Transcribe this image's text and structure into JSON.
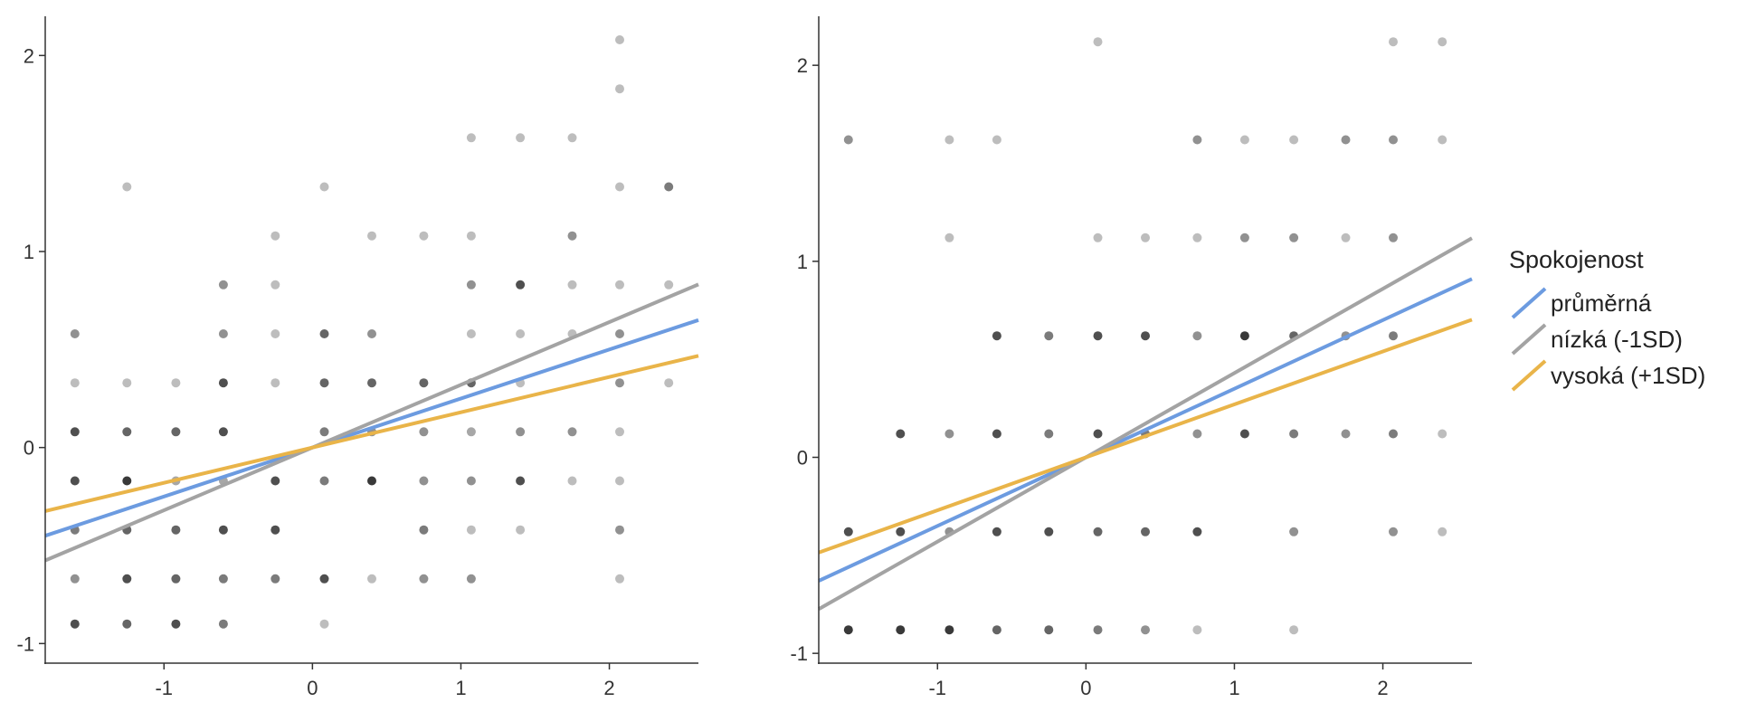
{
  "chart_data": {
    "type": "scatter",
    "legend": {
      "title": "Spokojenost",
      "position": "right",
      "items": [
        {
          "label": "průměrná",
          "color": "#6C9BE0"
        },
        {
          "label": "nízká (-1SD)",
          "color": "#A3A3A3"
        },
        {
          "label": "vysoká (+1SD)",
          "color": "#E9B449"
        }
      ]
    },
    "panels": [
      {
        "xlim": [
          -1.8,
          2.6
        ],
        "ylim": [
          -1.1,
          2.2
        ],
        "xticks": [
          -1,
          0,
          1,
          2
        ],
        "yticks": [
          -1,
          0,
          1,
          2
        ],
        "grid": false,
        "lines": [
          {
            "series": "průměrná",
            "color": "#6C9BE0",
            "slope": 0.25
          },
          {
            "series": "nízká (-1SD)",
            "color": "#A3A3A3",
            "slope": 0.32
          },
          {
            "series": "vysoká (+1SD)",
            "color": "#E9B449",
            "slope": 0.18
          }
        ],
        "points": [
          [
            -1.6,
            -0.9,
            0.8
          ],
          [
            -1.25,
            -0.9,
            0.7
          ],
          [
            -0.92,
            -0.9,
            0.8
          ],
          [
            -0.6,
            -0.9,
            0.6
          ],
          [
            0.08,
            -0.9,
            0.3
          ],
          [
            -1.6,
            -0.67,
            0.5
          ],
          [
            -1.25,
            -0.67,
            0.8
          ],
          [
            -0.92,
            -0.67,
            0.7
          ],
          [
            -0.6,
            -0.67,
            0.6
          ],
          [
            -0.25,
            -0.67,
            0.6
          ],
          [
            0.08,
            -0.67,
            0.8
          ],
          [
            0.4,
            -0.67,
            0.3
          ],
          [
            0.75,
            -0.67,
            0.5
          ],
          [
            1.07,
            -0.67,
            0.5
          ],
          [
            2.07,
            -0.67,
            0.3
          ],
          [
            -1.6,
            -0.42,
            0.6
          ],
          [
            -1.25,
            -0.42,
            0.7
          ],
          [
            -0.92,
            -0.42,
            0.7
          ],
          [
            -0.6,
            -0.42,
            0.8
          ],
          [
            -0.25,
            -0.42,
            0.8
          ],
          [
            0.75,
            -0.42,
            0.6
          ],
          [
            1.07,
            -0.42,
            0.3
          ],
          [
            1.4,
            -0.42,
            0.3
          ],
          [
            2.07,
            -0.42,
            0.5
          ],
          [
            -1.6,
            -0.17,
            0.8
          ],
          [
            -1.25,
            -0.17,
            0.9
          ],
          [
            -0.92,
            -0.17,
            0.4
          ],
          [
            -0.6,
            -0.17,
            0.4
          ],
          [
            -0.25,
            -0.17,
            0.8
          ],
          [
            0.08,
            -0.17,
            0.6
          ],
          [
            0.4,
            -0.17,
            0.9
          ],
          [
            0.75,
            -0.17,
            0.5
          ],
          [
            1.07,
            -0.17,
            0.5
          ],
          [
            1.4,
            -0.17,
            0.8
          ],
          [
            1.75,
            -0.17,
            0.3
          ],
          [
            2.07,
            -0.17,
            0.3
          ],
          [
            -1.6,
            0.08,
            0.8
          ],
          [
            -1.25,
            0.08,
            0.7
          ],
          [
            -0.92,
            0.08,
            0.7
          ],
          [
            -0.6,
            0.08,
            0.8
          ],
          [
            0.08,
            0.08,
            0.6
          ],
          [
            0.4,
            0.08,
            0.5
          ],
          [
            0.75,
            0.08,
            0.5
          ],
          [
            1.07,
            0.08,
            0.4
          ],
          [
            1.4,
            0.08,
            0.5
          ],
          [
            1.75,
            0.08,
            0.5
          ],
          [
            2.07,
            0.08,
            0.3
          ],
          [
            -1.6,
            0.33,
            0.3
          ],
          [
            -1.25,
            0.33,
            0.3
          ],
          [
            -0.92,
            0.33,
            0.3
          ],
          [
            -0.6,
            0.33,
            0.8
          ],
          [
            -0.25,
            0.33,
            0.3
          ],
          [
            0.08,
            0.33,
            0.7
          ],
          [
            0.4,
            0.33,
            0.7
          ],
          [
            0.75,
            0.33,
            0.7
          ],
          [
            1.07,
            0.33,
            0.7
          ],
          [
            1.4,
            0.33,
            0.3
          ],
          [
            2.07,
            0.33,
            0.5
          ],
          [
            2.4,
            0.33,
            0.3
          ],
          [
            -1.6,
            0.58,
            0.5
          ],
          [
            -0.6,
            0.58,
            0.5
          ],
          [
            -0.25,
            0.58,
            0.3
          ],
          [
            0.08,
            0.58,
            0.7
          ],
          [
            0.4,
            0.58,
            0.5
          ],
          [
            1.07,
            0.58,
            0.3
          ],
          [
            1.4,
            0.58,
            0.3
          ],
          [
            1.75,
            0.58,
            0.3
          ],
          [
            2.07,
            0.58,
            0.5
          ],
          [
            -0.6,
            0.83,
            0.5
          ],
          [
            -0.25,
            0.83,
            0.3
          ],
          [
            1.07,
            0.83,
            0.5
          ],
          [
            1.4,
            0.83,
            0.8
          ],
          [
            1.75,
            0.83,
            0.3
          ],
          [
            2.07,
            0.83,
            0.3
          ],
          [
            2.4,
            0.83,
            0.3
          ],
          [
            -0.25,
            1.08,
            0.3
          ],
          [
            0.4,
            1.08,
            0.3
          ],
          [
            0.75,
            1.08,
            0.3
          ],
          [
            1.07,
            1.08,
            0.3
          ],
          [
            1.75,
            1.08,
            0.5
          ],
          [
            -1.25,
            1.33,
            0.3
          ],
          [
            0.08,
            1.33,
            0.3
          ],
          [
            2.07,
            1.33,
            0.3
          ],
          [
            2.4,
            1.33,
            0.6
          ],
          [
            1.07,
            1.58,
            0.3
          ],
          [
            1.4,
            1.58,
            0.3
          ],
          [
            1.75,
            1.58,
            0.3
          ],
          [
            2.07,
            1.83,
            0.3
          ],
          [
            2.07,
            2.08,
            0.3
          ]
        ]
      },
      {
        "xlim": [
          -1.8,
          2.6
        ],
        "ylim": [
          -1.05,
          2.25
        ],
        "xticks": [
          -1,
          0,
          1,
          2
        ],
        "yticks": [
          -1,
          0,
          1,
          2
        ],
        "grid": false,
        "lines": [
          {
            "series": "průměrná",
            "color": "#6C9BE0",
            "slope": 0.35
          },
          {
            "series": "nízká (-1SD)",
            "color": "#A3A3A3",
            "slope": 0.43
          },
          {
            "series": "vysoká (+1SD)",
            "color": "#E9B449",
            "slope": 0.27
          }
        ],
        "points": [
          [
            -1.6,
            -0.88,
            0.9
          ],
          [
            -1.25,
            -0.88,
            0.9
          ],
          [
            -0.92,
            -0.88,
            0.9
          ],
          [
            -0.6,
            -0.88,
            0.7
          ],
          [
            -0.25,
            -0.88,
            0.7
          ],
          [
            0.08,
            -0.88,
            0.6
          ],
          [
            0.4,
            -0.88,
            0.5
          ],
          [
            0.75,
            -0.88,
            0.3
          ],
          [
            1.4,
            -0.88,
            0.3
          ],
          [
            -1.6,
            -0.38,
            0.8
          ],
          [
            -1.25,
            -0.38,
            0.8
          ],
          [
            -0.92,
            -0.38,
            0.5
          ],
          [
            -0.6,
            -0.38,
            0.8
          ],
          [
            -0.25,
            -0.38,
            0.8
          ],
          [
            0.08,
            -0.38,
            0.7
          ],
          [
            0.4,
            -0.38,
            0.7
          ],
          [
            0.75,
            -0.38,
            0.8
          ],
          [
            1.4,
            -0.38,
            0.5
          ],
          [
            2.07,
            -0.38,
            0.5
          ],
          [
            2.4,
            -0.38,
            0.3
          ],
          [
            -1.25,
            0.12,
            0.8
          ],
          [
            -0.92,
            0.12,
            0.5
          ],
          [
            -0.6,
            0.12,
            0.8
          ],
          [
            -0.25,
            0.12,
            0.6
          ],
          [
            0.08,
            0.12,
            0.8
          ],
          [
            0.4,
            0.12,
            0.6
          ],
          [
            0.75,
            0.12,
            0.5
          ],
          [
            1.07,
            0.12,
            0.8
          ],
          [
            1.4,
            0.12,
            0.6
          ],
          [
            1.75,
            0.12,
            0.5
          ],
          [
            2.07,
            0.12,
            0.6
          ],
          [
            2.4,
            0.12,
            0.3
          ],
          [
            -0.6,
            0.62,
            0.8
          ],
          [
            -0.25,
            0.62,
            0.6
          ],
          [
            0.08,
            0.62,
            0.8
          ],
          [
            0.4,
            0.62,
            0.8
          ],
          [
            0.75,
            0.62,
            0.5
          ],
          [
            1.07,
            0.62,
            0.9
          ],
          [
            1.4,
            0.62,
            0.7
          ],
          [
            1.75,
            0.62,
            0.5
          ],
          [
            2.07,
            0.62,
            0.6
          ],
          [
            -0.92,
            1.12,
            0.3
          ],
          [
            0.08,
            1.12,
            0.3
          ],
          [
            0.4,
            1.12,
            0.3
          ],
          [
            0.75,
            1.12,
            0.3
          ],
          [
            1.07,
            1.12,
            0.5
          ],
          [
            1.4,
            1.12,
            0.5
          ],
          [
            1.75,
            1.12,
            0.3
          ],
          [
            2.07,
            1.12,
            0.5
          ],
          [
            -1.6,
            1.62,
            0.5
          ],
          [
            -0.92,
            1.62,
            0.3
          ],
          [
            -0.6,
            1.62,
            0.3
          ],
          [
            0.75,
            1.62,
            0.5
          ],
          [
            1.07,
            1.62,
            0.3
          ],
          [
            1.4,
            1.62,
            0.3
          ],
          [
            1.75,
            1.62,
            0.5
          ],
          [
            2.07,
            1.62,
            0.5
          ],
          [
            2.4,
            1.62,
            0.3
          ],
          [
            0.08,
            2.12,
            0.3
          ],
          [
            2.07,
            2.12,
            0.3
          ],
          [
            2.4,
            2.12,
            0.3
          ]
        ]
      }
    ]
  }
}
